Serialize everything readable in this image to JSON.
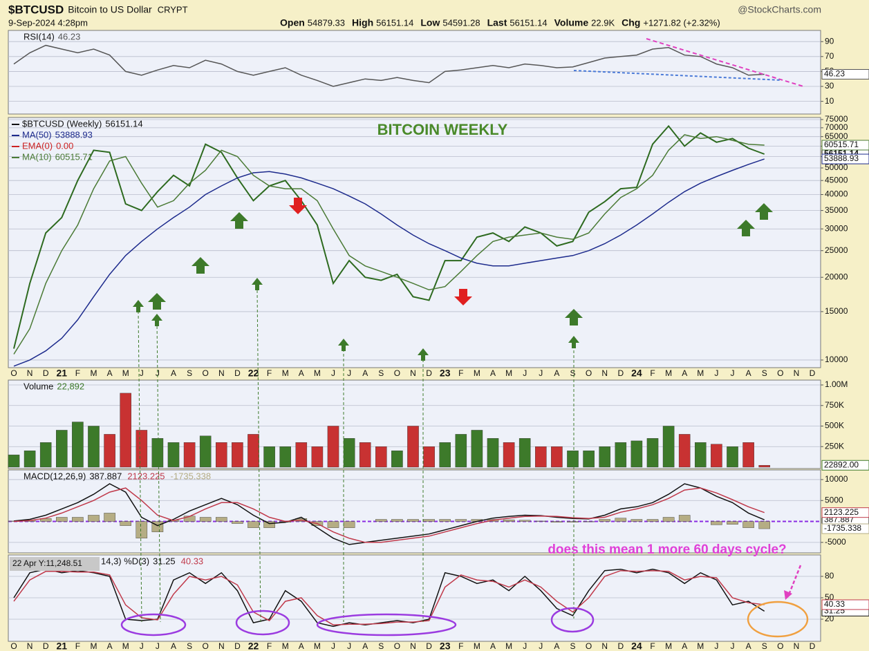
{
  "header": {
    "symbol": "$BTCUSD",
    "name": "Bitcoin to US Dollar",
    "exchange": "CRYPT",
    "source": "@StockCharts.com",
    "date": "9-Sep-2024 4:28pm",
    "stats": [
      {
        "label": "Open",
        "value": "54879.33"
      },
      {
        "label": "High",
        "value": "56151.14"
      },
      {
        "label": "Low",
        "value": "54591.28"
      },
      {
        "label": "Last",
        "value": "56151.14"
      },
      {
        "label": "Volume",
        "value": "22.9K"
      },
      {
        "label": "Chg",
        "value": "+1271.82 (+2.32%)"
      }
    ]
  },
  "chart_data": [
    {
      "type": "line",
      "ylim": [
        -7,
        105
      ],
      "yticks": [
        10,
        30,
        50,
        70,
        90
      ],
      "legend_layout": "row",
      "series": [
        {
          "name": "RSI(14)",
          "color": "#555555",
          "tag": true,
          "values": [
            60,
            75,
            85,
            80,
            75,
            80,
            72,
            50,
            45,
            52,
            58,
            55,
            65,
            60,
            50,
            45,
            50,
            55,
            45,
            38,
            30,
            35,
            40,
            38,
            42,
            38,
            35,
            50,
            52,
            55,
            58,
            55,
            60,
            58,
            55,
            56,
            62,
            68,
            70,
            72,
            80,
            82,
            72,
            70,
            60,
            55,
            45,
            46.23,
            null,
            null,
            null
          ]
        }
      ]
    },
    {
      "type": "line",
      "log_scale": true,
      "ylim": [
        9380,
        76300
      ],
      "yticks": [
        10000,
        15000,
        20000,
        25000,
        30000,
        35000,
        40000,
        45000,
        50000,
        55000,
        60000,
        65000,
        70000,
        75000
      ],
      "legend_layout": "column",
      "annotation": "BITCOIN WEEKLY",
      "categories": [
        "O",
        "N",
        "D",
        "21",
        "F",
        "M",
        "A",
        "M",
        "J",
        "J",
        "A",
        "S",
        "O",
        "N",
        "D",
        "22",
        "F",
        "M",
        "A",
        "M",
        "J",
        "J",
        "A",
        "S",
        "O",
        "N",
        "D",
        "23",
        "F",
        "M",
        "A",
        "M",
        "J",
        "J",
        "A",
        "S",
        "O",
        "N",
        "D",
        "24",
        "F",
        "M",
        "A",
        "M",
        "J",
        "J",
        "A",
        "S",
        "O",
        "N",
        "D"
      ],
      "series": [
        {
          "name": "$BTCUSD (Weekly)",
          "color": "#2d6a1f",
          "tag": true,
          "values": [
            11000,
            19000,
            29000,
            33000,
            45000,
            58000,
            57000,
            37000,
            35000,
            41000,
            47000,
            43000,
            61000,
            57000,
            46000,
            38000,
            43000,
            45000,
            38000,
            31000,
            19000,
            23000,
            20000,
            19500,
            20500,
            17000,
            16500,
            23000,
            23000,
            28000,
            29000,
            27000,
            30500,
            29000,
            26000,
            27000,
            34500,
            37700,
            42000,
            42500,
            61000,
            71000,
            60000,
            67000,
            62000,
            64000,
            59000,
            56151.14,
            null,
            null,
            null
          ]
        },
        {
          "name": "MA(50)",
          "color": "#1c2a8c",
          "tag": true,
          "values": [
            9500,
            10000,
            10800,
            12000,
            14000,
            17000,
            20500,
            24000,
            27000,
            30000,
            33000,
            36000,
            40000,
            43000,
            46000,
            48000,
            48500,
            47500,
            46000,
            44000,
            42000,
            39500,
            37000,
            34000,
            31000,
            28500,
            26500,
            25000,
            23500,
            22500,
            22000,
            22000,
            22500,
            23000,
            23500,
            24000,
            25000,
            26500,
            28500,
            31000,
            34000,
            37500,
            41000,
            44000,
            46500,
            49000,
            51500,
            53888.93,
            null,
            null,
            null
          ]
        },
        {
          "name": "MA(10)",
          "color": "#4a7a35",
          "tag": true,
          "values": [
            10500,
            13000,
            19000,
            25000,
            31000,
            42000,
            53000,
            55000,
            44000,
            36000,
            38000,
            44000,
            49000,
            58000,
            55000,
            47000,
            43000,
            42000,
            42000,
            38000,
            30000,
            24000,
            22000,
            21000,
            20000,
            19000,
            18000,
            18500,
            21000,
            24000,
            27000,
            28000,
            28500,
            29000,
            28000,
            27500,
            29000,
            34000,
            39000,
            42000,
            47000,
            58000,
            66000,
            64000,
            65000,
            63000,
            61000,
            60515.71,
            null,
            null,
            null
          ]
        }
      ],
      "legend_items": [
        {
          "name": "EMA(0)",
          "label": "0.00",
          "color": "#cc2222"
        }
      ]
    },
    {
      "type": "bar",
      "ylim": [
        -17000,
        1059000
      ],
      "yticks": [
        {
          "value": 250000,
          "label": "250K"
        },
        {
          "value": 500000,
          "label": "500K"
        },
        {
          "value": 750000,
          "label": "750K"
        },
        {
          "value": 1000000,
          "label": "1.00M"
        }
      ],
      "legend_layout": "row",
      "series": [
        {
          "name": "Volume",
          "color": "#3d7a2a",
          "down_color": "#c83232",
          "legend_label": "22,892",
          "axis_label": "22892.00",
          "values": [
            150000,
            200000,
            300000,
            450000,
            550000,
            500000,
            400000,
            900000,
            450000,
            350000,
            300000,
            300000,
            380000,
            300000,
            300000,
            400000,
            250000,
            250000,
            300000,
            250000,
            500000,
            350000,
            300000,
            250000,
            200000,
            500000,
            250000,
            300000,
            400000,
            450000,
            350000,
            300000,
            350000,
            250000,
            250000,
            200000,
            200000,
            250000,
            300000,
            320000,
            350000,
            500000,
            400000,
            300000,
            280000,
            250000,
            300000,
            22892,
            null,
            null,
            null
          ]
        }
      ]
    },
    {
      "type": "line",
      "ylim": [
        -7500,
        12300
      ],
      "yticks": [
        -5000,
        5000,
        10000
      ],
      "legend_layout": "row",
      "zero_line_color": "#8a2be2",
      "series": [
        {
          "name": "MACD(12,26,9)",
          "color": "#111111",
          "tag": true,
          "values": [
            100,
            500,
            1500,
            3000,
            4500,
            6500,
            9000,
            7000,
            1000,
            -1000,
            500,
            2500,
            4000,
            5500,
            4000,
            1500,
            -500,
            -200,
            1000,
            -1500,
            -4000,
            -5500,
            -5000,
            -4500,
            -4000,
            -3500,
            -3000,
            -2000,
            -1000,
            0,
            800,
            1200,
            1500,
            1400,
            1000,
            700,
            600,
            1500,
            3000,
            3500,
            4500,
            6500,
            9000,
            8000,
            6000,
            4500,
            2000,
            387.887,
            null,
            null,
            null
          ]
        },
        {
          "color": "#c0394a",
          "tag": true,
          "values": [
            0,
            200,
            800,
            2000,
            3500,
            5000,
            7000,
            8000,
            5000,
            1500,
            200,
            1200,
            3000,
            4500,
            4500,
            3000,
            1000,
            0,
            300,
            -500,
            -2500,
            -4000,
            -5000,
            -5000,
            -4500,
            -4000,
            -3500,
            -2500,
            -1500,
            -500,
            300,
            800,
            1200,
            1300,
            1200,
            900,
            700,
            1000,
            2200,
            3000,
            4000,
            5500,
            7500,
            8000,
            6800,
            5200,
            3500,
            2123.225,
            null,
            null,
            null
          ]
        },
        {
          "color": "#b5ad84",
          "style": "bar",
          "tag": true,
          "values": [
            100,
            300,
            700,
            1000,
            1000,
            1500,
            2000,
            -1000,
            -4000,
            -2500,
            300,
            1300,
            1000,
            1000,
            -500,
            -1500,
            -1500,
            -200,
            700,
            -1000,
            -1500,
            -1500,
            0,
            500,
            500,
            500,
            500,
            500,
            500,
            500,
            500,
            400,
            300,
            100,
            -200,
            -200,
            -100,
            500,
            800,
            500,
            500,
            1000,
            1500,
            0,
            -800,
            -700,
            -1500,
            -1735.338,
            null,
            null,
            null
          ]
        }
      ]
    },
    {
      "type": "line",
      "ylim": [
        -11,
        110
      ],
      "yticks": [
        20,
        50,
        80
      ],
      "legend_layout": "row",
      "legend": "14,3) %D(3)",
      "annotation": "does this mean 1 more 60 days cycle?",
      "tooltip": "22 Apr Y:11,248.51",
      "series": [
        {
          "color": "#111111",
          "tag": true,
          "values": [
            50,
            85,
            90,
            85,
            88,
            85,
            80,
            20,
            18,
            20,
            75,
            85,
            70,
            85,
            60,
            15,
            20,
            60,
            45,
            15,
            10,
            15,
            12,
            15,
            18,
            15,
            20,
            85,
            80,
            70,
            75,
            60,
            80,
            60,
            35,
            25,
            60,
            88,
            90,
            85,
            90,
            85,
            70,
            85,
            75,
            40,
            45,
            31.25,
            null,
            null,
            null
          ]
        },
        {
          "color": "#c0394a",
          "tag": true,
          "values": [
            45,
            75,
            87,
            87,
            86,
            86,
            82,
            40,
            22,
            19,
            55,
            80,
            75,
            80,
            68,
            30,
            18,
            45,
            50,
            25,
            12,
            13,
            13,
            14,
            16,
            16,
            18,
            65,
            82,
            75,
            73,
            65,
            75,
            65,
            45,
            30,
            50,
            80,
            88,
            87,
            88,
            87,
            75,
            80,
            78,
            50,
            43,
            40.33,
            null,
            null,
            null
          ]
        }
      ]
    }
  ]
}
